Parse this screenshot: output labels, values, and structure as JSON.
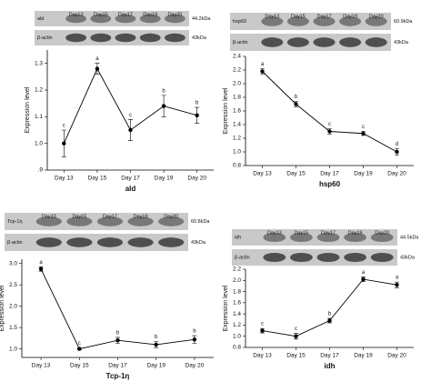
{
  "chart_data": [
    {
      "type": "line",
      "x_label": "ald",
      "y_label": "Expression level",
      "categories": [
        "Day 13",
        "Day 15",
        "Day 17",
        "Day 19",
        "Day 20"
      ],
      "values": [
        1.0,
        1.28,
        1.05,
        1.14,
        1.105
      ],
      "errors": [
        0.05,
        0.02,
        0.04,
        0.04,
        0.03
      ],
      "letters": [
        "c",
        "a",
        "c",
        "b",
        "b"
      ],
      "ylim": [
        0.9,
        1.35
      ],
      "yticks": [
        {
          "value": 0.9,
          "label": ".9"
        },
        {
          "value": 1,
          "label": "1.0"
        },
        1.1,
        1.2,
        1.3
      ],
      "color": "#000000",
      "blot": {
        "lanes": [
          "Day13",
          "Day15",
          "Day17",
          "Day19",
          "Day20"
        ],
        "rows": [
          {
            "label": "ald",
            "size": "44.2kDa"
          },
          {
            "label": "β-actin",
            "size": "43kDa"
          }
        ]
      }
    },
    {
      "type": "line",
      "x_label": "hsp60",
      "y_label": "Expression level",
      "categories": [
        "Day 13",
        "Day 15",
        "Day 17",
        "Day 19",
        "Day 20"
      ],
      "values": [
        2.18,
        1.7,
        1.3,
        1.27,
        1.0
      ],
      "errors": [
        0.04,
        0.04,
        0.04,
        0.03,
        0.05
      ],
      "letters": [
        "a",
        "b",
        "c",
        "c",
        "d"
      ],
      "ylim": [
        0.8,
        2.4
      ],
      "yticks": [
        {
          "value": 0.8,
          "label": "0.8"
        },
        {
          "value": 1,
          "label": "1.0"
        },
        1.2,
        1.4,
        1.6,
        1.8,
        {
          "value": 2,
          "label": "2.0"
        },
        2.2,
        2.4
      ],
      "color": "#000000",
      "blot": {
        "lanes": [
          "Day13",
          "Day15",
          "Day17",
          "Day19",
          "Day20"
        ],
        "rows": [
          {
            "label": "hsp60",
            "size": "60.9kDa"
          },
          {
            "label": "β-actin",
            "size": "43kDa"
          }
        ]
      }
    },
    {
      "type": "line",
      "x_label": "Tcp-1η",
      "y_label": "Expression level",
      "categories": [
        "Day 13",
        "Day 15",
        "Day 17",
        "Day 19",
        "Day 20"
      ],
      "values": [
        2.87,
        1.0,
        1.2,
        1.1,
        1.22
      ],
      "errors": [
        0.05,
        0.02,
        0.07,
        0.07,
        0.09
      ],
      "letters": [
        "a",
        "c",
        "b",
        "b",
        "b"
      ],
      "ylim": [
        0.8,
        3.1
      ],
      "yticks": [
        {
          "value": 1,
          "label": "1.0"
        },
        1.5,
        {
          "value": 2,
          "label": "2.0"
        },
        2.5,
        {
          "value": 3,
          "label": "3.0"
        }
      ],
      "color": "#000000",
      "blot": {
        "lanes": [
          "Day13",
          "Day15",
          "Day17",
          "Day19",
          "Day20"
        ],
        "rows": [
          {
            "label": "Tcp-1η",
            "size": "60.8kDa"
          },
          {
            "label": "β-actin",
            "size": "43kDa"
          }
        ]
      }
    },
    {
      "type": "line",
      "x_label": "idh",
      "y_label": "Expression level",
      "categories": [
        "Day 13",
        "Day 15",
        "Day 17",
        "Day 19",
        "Day 20"
      ],
      "values": [
        1.1,
        1.0,
        1.28,
        2.02,
        1.92
      ],
      "errors": [
        0.04,
        0.05,
        0.04,
        0.04,
        0.05
      ],
      "letters": [
        "c",
        "c",
        "b",
        "a",
        "a"
      ],
      "ylim": [
        0.8,
        2.2
      ],
      "yticks": [
        {
          "value": 0.8,
          "label": "0.8"
        },
        {
          "value": 1,
          "label": "1.0"
        },
        1.2,
        1.4,
        1.6,
        1.8,
        {
          "value": 2,
          "label": "2.0"
        },
        2.2
      ],
      "color": "#000000",
      "blot": {
        "lanes": [
          "Day13",
          "Day15",
          "Day17",
          "Day19",
          "Day20"
        ],
        "rows": [
          {
            "label": "idh",
            "size": "44.5kDa"
          },
          {
            "label": "β-actin",
            "size": "43kDa"
          }
        ]
      }
    }
  ]
}
